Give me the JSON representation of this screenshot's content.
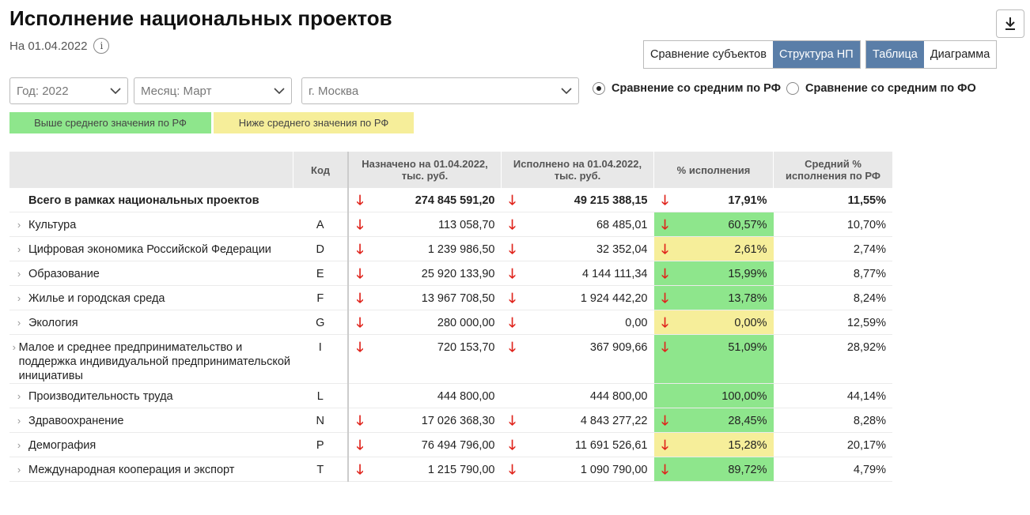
{
  "header": {
    "title": "Исполнение национальных проектов",
    "date_label": "На 01.04.2022",
    "info_symbol": "i"
  },
  "view_toggles": {
    "compare_subjects": "Сравнение субъектов",
    "structure_np": "Структура НП",
    "table": "Таблица",
    "diagram": "Диаграмма"
  },
  "filters": {
    "year": "Год: 2022",
    "month": "Месяц: Март",
    "region": "г. Москва"
  },
  "comparison": {
    "option_rf": "Сравнение со средним по РФ",
    "option_fo": "Сравнение со средним по ФО",
    "selected": "rf"
  },
  "legend": {
    "above": "Выше среднего значения по РФ",
    "below": "Ниже среднего значения по РФ",
    "above_color": "#8ee68c",
    "below_color": "#f6ee9a"
  },
  "table": {
    "headers": {
      "code": "Код",
      "assigned": "Назначено на 01.04.2022, тыс. руб.",
      "executed": "Исполнено на 01.04.2022, тыс. руб.",
      "percent": "% исполнения",
      "avg": "Средний % исполнения по РФ"
    },
    "total": {
      "name": "Всего в рамках национальных проектов",
      "assigned": "274 845 591,20",
      "executed": "49 215 388,15",
      "percent": "17,91%",
      "avg": "11,55%"
    },
    "rows": [
      {
        "name": "Культура",
        "code": "A",
        "assigned": "113 058,70",
        "executed": "68 485,01",
        "percent": "60,57%",
        "avg": "10,70%",
        "status": "g",
        "arrows": true
      },
      {
        "name": "Цифровая экономика Российской Федерации",
        "code": "D",
        "assigned": "1 239 986,50",
        "executed": "32 352,04",
        "percent": "2,61%",
        "avg": "2,74%",
        "status": "y",
        "arrows": true
      },
      {
        "name": "Образование",
        "code": "E",
        "assigned": "25 920 133,90",
        "executed": "4 144 111,34",
        "percent": "15,99%",
        "avg": "8,77%",
        "status": "g",
        "arrows": true
      },
      {
        "name": "Жилье и городская среда",
        "code": "F",
        "assigned": "13 967 708,50",
        "executed": "1 924 442,20",
        "percent": "13,78%",
        "avg": "8,24%",
        "status": "g",
        "arrows": true
      },
      {
        "name": "Экология",
        "code": "G",
        "assigned": "280 000,00",
        "executed": "0,00",
        "percent": "0,00%",
        "avg": "12,59%",
        "status": "y",
        "arrows": true
      },
      {
        "name": "Малое и среднее предпринимательство и поддержка индивидуальной предпринимательской инициативы",
        "code": "I",
        "assigned": "720 153,70",
        "executed": "367 909,66",
        "percent": "51,09%",
        "avg": "28,92%",
        "status": "g",
        "arrows": true
      },
      {
        "name": "Производительность труда",
        "code": "L",
        "assigned": "444 800,00",
        "executed": "444 800,00",
        "percent": "100,00%",
        "avg": "44,14%",
        "status": "g",
        "arrows": false
      },
      {
        "name": "Здравоохранение",
        "code": "N",
        "assigned": "17 026 368,30",
        "executed": "4 843 277,22",
        "percent": "28,45%",
        "avg": "8,28%",
        "status": "g",
        "arrows": true
      },
      {
        "name": "Демография",
        "code": "P",
        "assigned": "76 494 796,00",
        "executed": "11 691 526,61",
        "percent": "15,28%",
        "avg": "20,17%",
        "status": "y",
        "arrows": true
      },
      {
        "name": "Международная кооперация и экспорт",
        "code": "T",
        "assigned": "1 215 790,00",
        "executed": "1 090 790,00",
        "percent": "89,72%",
        "avg": "4,79%",
        "status": "g",
        "arrows": true
      }
    ]
  }
}
